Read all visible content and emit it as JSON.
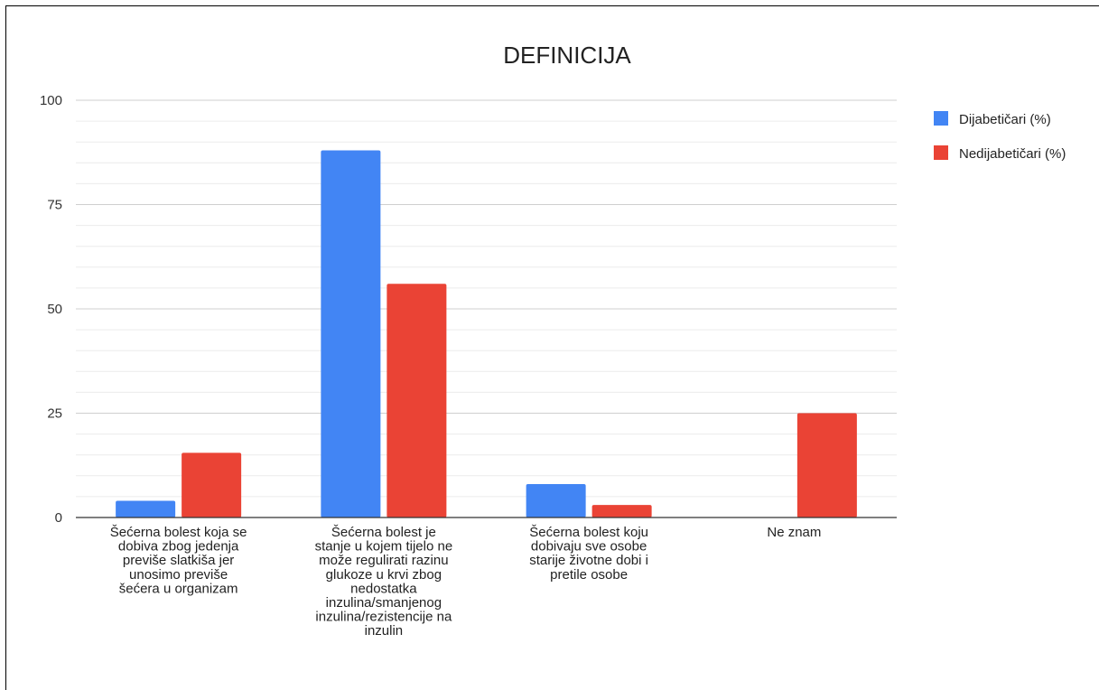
{
  "chart_data": {
    "type": "bar",
    "title": "DEFINICIJA",
    "xlabel": "",
    "ylabel": "",
    "ylim": [
      0,
      100
    ],
    "yticks": [
      "0",
      "25",
      "50",
      "75",
      "100"
    ],
    "grid": true,
    "legend_position": "right",
    "categories": [
      [
        "Šećerna bolest koja se",
        "dobiva zbog jedenja",
        "previše slatkiša jer",
        "unosimo previše",
        "šećera u organizam"
      ],
      [
        "Šećerna bolest je",
        "stanje u kojem tijelo ne",
        "može regulirati razinu",
        "glukoze u krvi zbog",
        "nedostatka",
        "inzulina/smanjenog",
        "inzulina/rezistencije na",
        "inzulin"
      ],
      [
        "Šećerna bolest koju",
        "dobivaju sve osobe",
        "starije životne dobi i",
        "pretile osobe"
      ],
      [
        "Ne znam"
      ]
    ],
    "series": [
      {
        "name": "Dijabetičari (%)",
        "color": "#4285f4",
        "values": [
          4,
          88,
          8,
          0
        ]
      },
      {
        "name": "Nedijabetičari (%)",
        "color": "#ea4335",
        "values": [
          15.5,
          56,
          3,
          25
        ]
      }
    ]
  }
}
